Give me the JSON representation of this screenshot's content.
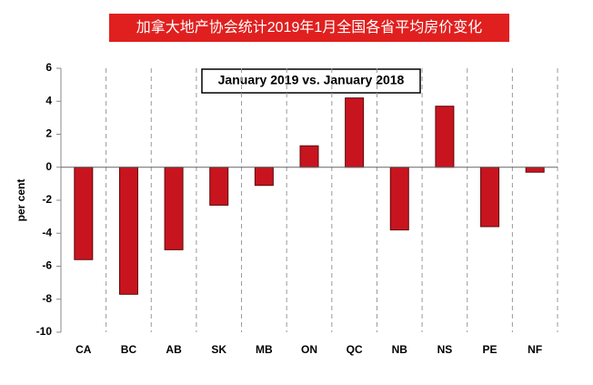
{
  "chart_data": {
    "type": "bar",
    "title": "加拿大地产协会统计2019年1月全国各省平均房价变化",
    "annotation": "January 2019 vs. January 2018",
    "y_label": "per cent",
    "categories": [
      "CA",
      "BC",
      "AB",
      "SK",
      "MB",
      "ON",
      "QC",
      "NB",
      "NS",
      "PE",
      "NF"
    ],
    "values": [
      -5.6,
      -7.7,
      -5.0,
      -2.3,
      -1.1,
      1.3,
      4.2,
      -3.8,
      3.7,
      -3.6,
      -0.3
    ],
    "color": "#c8141e",
    "ylim": [
      -10,
      6
    ],
    "yticks": [
      -10,
      -8,
      -6,
      -4,
      -2,
      0,
      2,
      4,
      6
    ],
    "category_separators": true
  }
}
